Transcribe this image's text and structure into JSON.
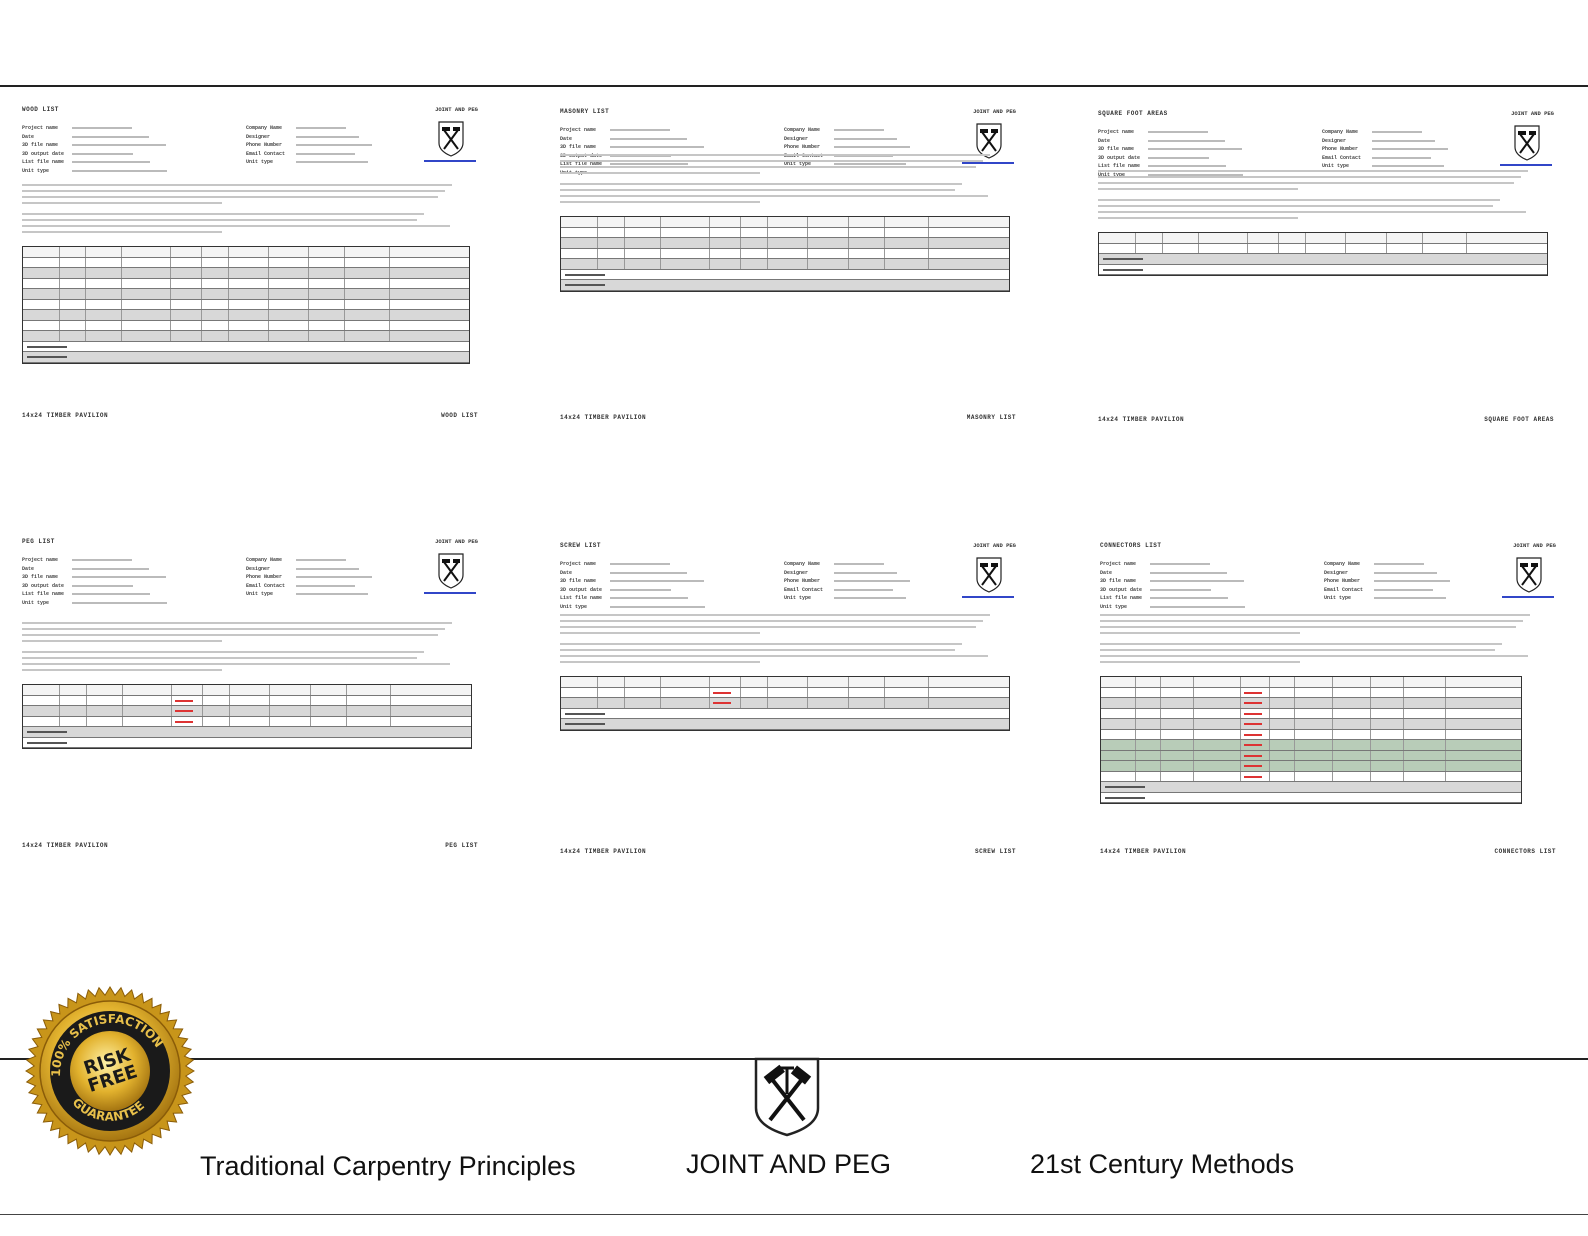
{
  "sheets": [
    {
      "title": "WOOD LIST",
      "brand": "JOINT AND PEG",
      "footer_left": "14x24 TIMBER PAVILION",
      "footer_right": "WOOD LIST",
      "rows": 11
    },
    {
      "title": "MASONRY LIST",
      "brand": "JOINT AND PEG",
      "footer_left": "14x24 TIMBER PAVILION",
      "footer_right": "MASONRY LIST",
      "rows": 7
    },
    {
      "title": "SQUARE FOOT AREAS",
      "brand": "JOINT AND PEG",
      "footer_left": "14x24 TIMBER PAVILION",
      "footer_right": "SQUARE FOOT AREAS",
      "rows": 4
    },
    {
      "title": "PEG LIST",
      "brand": "JOINT AND PEG",
      "footer_left": "14x24 TIMBER PAVILION",
      "footer_right": "PEG LIST",
      "rows": 6
    },
    {
      "title": "SCREW LIST",
      "brand": "JOINT AND PEG",
      "footer_left": "14x24 TIMBER PAVILION",
      "footer_right": "SCREW LIST",
      "rows": 5
    },
    {
      "title": "CONNECTORS LIST",
      "brand": "JOINT AND PEG",
      "footer_left": "14x24 TIMBER PAVILION",
      "footer_right": "CONNECTORS LIST",
      "rows": 12
    }
  ],
  "field_labels": [
    "Project name",
    "Date",
    "3D file name",
    "3D output date",
    "List file name",
    "Unit type"
  ],
  "field_labels_right": [
    "Company Name",
    "Designer",
    "Phone Number",
    "Email Contact",
    "Unit type"
  ],
  "seal": {
    "line1": "100% SATISFACTION",
    "line2": "RISK",
    "line3": "FREE",
    "line4": "GUARANTEE"
  },
  "taglines": {
    "left": "Traditional Carpentry Principles",
    "center": "JOINT AND PEG",
    "right": "21st Century Methods"
  },
  "colors": {
    "rule": "#222222",
    "link": "#3146c8",
    "red_text": "#d33333",
    "gold": "#d4a21a"
  }
}
